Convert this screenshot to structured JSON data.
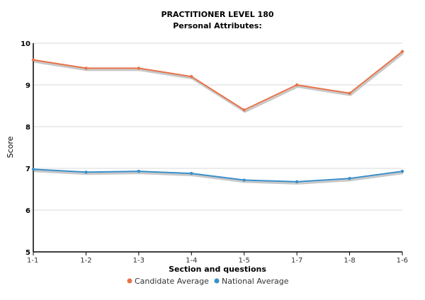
{
  "chart_data": {
    "type": "line",
    "title": "PRACTITIONER LEVEL 180",
    "subtitle": "Personal Attributes:",
    "xlabel": "Section and questions",
    "ylabel": "Score",
    "categories": [
      "1-1",
      "1-2",
      "1-3",
      "1-4",
      "1-5",
      "1-7",
      "1-8",
      "1-6"
    ],
    "ylim": [
      5,
      10
    ],
    "yticks": [
      "5",
      "6",
      "7",
      "8",
      "9",
      "10"
    ],
    "grid": true,
    "legend_position": "bottom",
    "series": [
      {
        "name": "Candidate Average",
        "color": "#e8734a",
        "values": [
          9.6,
          9.4,
          9.4,
          9.2,
          8.4,
          9.0,
          8.8,
          9.8
        ]
      },
      {
        "name": "National Average",
        "color": "#3a8fc8",
        "values": [
          6.98,
          6.91,
          6.93,
          6.88,
          6.72,
          6.68,
          6.76,
          6.93
        ]
      }
    ]
  }
}
